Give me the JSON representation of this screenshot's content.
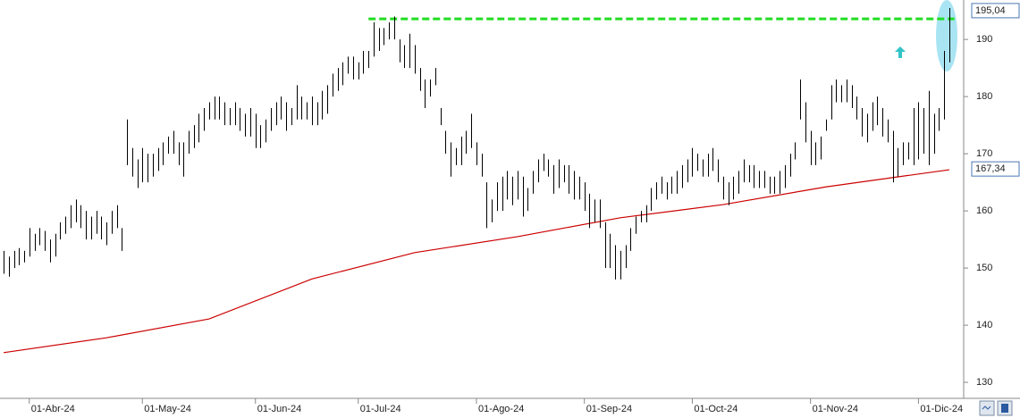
{
  "chart_data": {
    "type": "ohlc",
    "color": "#000000",
    "xlim": [
      -0.7,
      186.8
    ],
    "ylim": [
      127.2,
      196.9
    ],
    "xticks": [
      {
        "value": 5,
        "label": "01-Abr-24"
      },
      {
        "value": 27,
        "label": "01-May-24"
      },
      {
        "value": 49,
        "label": "01-Jun-24"
      },
      {
        "value": 69,
        "label": "01-Jul-24"
      },
      {
        "value": 92,
        "label": "01-Ago-24"
      },
      {
        "value": 113,
        "label": "01-Sep-24"
      },
      {
        "value": 134,
        "label": "01-Oct-24"
      },
      {
        "value": 157,
        "label": "01-Nov-24"
      },
      {
        "value": 178,
        "label": "01-Dic-24"
      }
    ],
    "yticks": [
      130,
      140,
      150,
      160,
      170,
      180,
      190
    ],
    "high": [
      153,
      152,
      153,
      153.5,
      153,
      157,
      156,
      157,
      156.5,
      155,
      156,
      158,
      159,
      161,
      162,
      161,
      160,
      159,
      160,
      159,
      158,
      160,
      161,
      157,
      176,
      171,
      169,
      171,
      170,
      170,
      171,
      172,
      173,
      174,
      172,
      172,
      174,
      175,
      177,
      178,
      179,
      180,
      180,
      179,
      178,
      179,
      178,
      177,
      178,
      177,
      175,
      176,
      178,
      179,
      180,
      179,
      178,
      182,
      180,
      179,
      180,
      179,
      181,
      182,
      184,
      185,
      186,
      187,
      187,
      186,
      188,
      188,
      193,
      192,
      192,
      193,
      194,
      190,
      189,
      191,
      189,
      185,
      183,
      183,
      185,
      178,
      174,
      172,
      171,
      173,
      174,
      177,
      172,
      170,
      165,
      162,
      165,
      166,
      167,
      166,
      167,
      166,
      164,
      167,
      169,
      170,
      169,
      168,
      169,
      168,
      168,
      167,
      166,
      165,
      163,
      162,
      162,
      158,
      156,
      154,
      153,
      154,
      157,
      159,
      160,
      161,
      164,
      165,
      166,
      165,
      166,
      167,
      168,
      169,
      171,
      170,
      169,
      170,
      171,
      169,
      166,
      165,
      166,
      167,
      169,
      168,
      168,
      167,
      167,
      166,
      166,
      167,
      168,
      170,
      172,
      183,
      179,
      174,
      172,
      173,
      176,
      182,
      183,
      182,
      183,
      182,
      180,
      178,
      177,
      179,
      180,
      178,
      176,
      174,
      171,
      172,
      172,
      178,
      179,
      178,
      181,
      177,
      178,
      188,
      195.5
    ],
    "low": [
      149,
      148.5,
      150,
      150.5,
      151,
      152,
      153,
      154,
      153,
      151,
      152,
      155,
      156,
      157,
      158,
      157,
      155,
      155,
      156,
      155,
      154,
      156,
      157,
      153,
      168,
      166,
      164,
      165,
      165,
      166,
      167,
      168,
      170,
      170,
      168,
      166,
      170,
      171,
      172,
      174,
      176,
      176,
      176,
      175,
      175,
      175,
      174,
      173,
      173,
      171,
      171,
      172,
      174,
      175,
      176,
      174,
      175,
      176,
      176,
      176,
      175,
      175,
      176,
      177,
      180,
      181,
      182,
      184,
      183,
      183,
      184,
      185,
      187,
      188,
      189,
      190,
      190,
      186,
      185,
      185,
      184,
      181,
      178,
      180,
      182,
      175,
      170,
      166,
      168,
      168,
      170,
      171,
      168,
      166,
      157,
      158,
      160,
      160,
      162,
      161,
      162,
      159,
      160,
      163,
      165,
      167,
      166,
      163,
      164,
      165,
      163,
      162,
      162,
      160,
      157,
      158,
      157,
      150,
      150,
      148,
      148,
      150,
      153,
      156,
      158,
      158,
      160,
      162,
      163,
      162,
      163,
      163,
      164,
      165,
      166,
      167,
      166,
      166,
      167,
      165,
      162,
      161,
      162,
      163,
      165,
      165,
      164,
      164,
      164,
      163,
      163,
      163,
      164,
      166,
      169,
      176,
      172,
      168,
      168,
      169,
      174,
      176,
      179,
      179,
      179,
      178,
      176,
      173,
      172,
      174,
      175,
      173,
      172,
      165,
      166,
      168,
      169,
      168,
      169,
      170,
      168,
      170,
      174,
      176,
      186
    ],
    "ma": {
      "color": "#cc0000",
      "x": [
        0,
        20,
        40,
        60,
        80,
        100,
        120,
        140,
        160,
        184
      ],
      "values": [
        135.2,
        137.8,
        141.1,
        148.1,
        152.7,
        155.5,
        158.8,
        161.1,
        164.2,
        167.2
      ]
    },
    "level": {
      "color": "#22dd22",
      "x": [
        71,
        185
      ],
      "values": [
        193.6,
        193.6
      ]
    },
    "price_labels": [
      {
        "value": 195.04,
        "label": "195,04"
      },
      {
        "value": 167.34,
        "label": "167,34"
      }
    ]
  }
}
